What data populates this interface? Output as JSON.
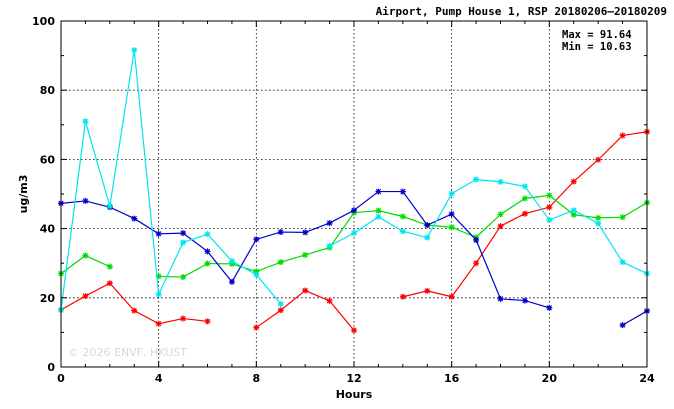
{
  "chart_data": {
    "type": "line",
    "title": "Airport, Pump House 1, RSP 20180206–20180209",
    "xlabel": "Hours",
    "ylabel": "ug/m3",
    "xlim": [
      0,
      24
    ],
    "ylim": [
      0,
      100
    ],
    "x_ticks": [
      0,
      4,
      8,
      12,
      16,
      20,
      24
    ],
    "y_ticks": [
      0,
      20,
      40,
      60,
      80,
      100
    ],
    "grid": true,
    "stats": {
      "max_label": "Max = 91.64",
      "min_label": "Min = 10.63"
    },
    "watermark": "© 2026 ENVF, HKUST",
    "x": [
      0,
      1,
      2,
      3,
      4,
      5,
      6,
      7,
      8,
      9,
      10,
      11,
      12,
      13,
      14,
      15,
      16,
      17,
      18,
      19,
      20,
      21,
      22,
      23,
      24
    ],
    "series": [
      {
        "color": "#ff0000",
        "values": [
          16.5,
          20.5,
          24.2,
          16.3,
          12.5,
          14.0,
          13.2,
          null,
          11.4,
          16.4,
          22.1,
          19.1,
          10.6,
          null,
          20.3,
          22.0,
          20.3,
          30.0,
          40.7,
          44.3,
          46.2,
          53.6,
          59.9,
          66.9,
          68.0
        ]
      },
      {
        "color": "#00dd00",
        "values": [
          27.0,
          32.2,
          29.0,
          null,
          26.2,
          26.0,
          29.9,
          29.8,
          27.6,
          30.3,
          32.4,
          34.5,
          44.6,
          45.2,
          43.5,
          41.0,
          40.4,
          37.5,
          44.1,
          48.7,
          49.6,
          44.0,
          43.1,
          43.3,
          47.5
        ]
      },
      {
        "color": "#0000cc",
        "values": [
          47.3,
          48.0,
          46.2,
          42.9,
          38.5,
          38.7,
          33.4,
          24.6,
          36.9,
          39.0,
          38.9,
          41.6,
          45.3,
          50.7,
          50.7,
          41.0,
          44.2,
          36.7,
          19.7,
          19.2,
          17.1,
          null,
          null,
          12.1,
          16.2
        ]
      },
      {
        "color": "#00e5ee",
        "values": [
          16.5,
          71.0,
          46.5,
          91.6,
          21.0,
          36.0,
          38.4,
          30.6,
          26.7,
          18.2,
          null,
          35.0,
          38.7,
          43.4,
          39.2,
          37.4,
          50.1,
          54.2,
          53.5,
          52.2,
          42.5,
          45.3,
          41.5,
          30.3,
          27.0
        ]
      }
    ]
  }
}
